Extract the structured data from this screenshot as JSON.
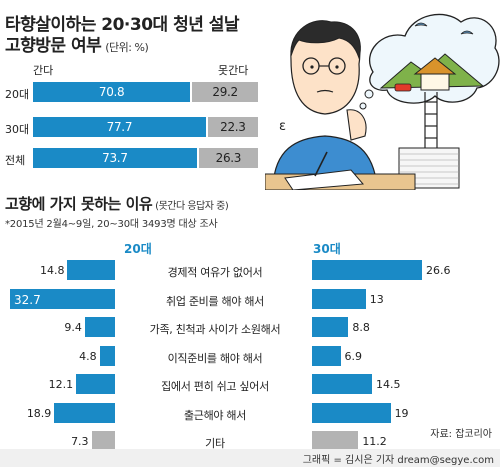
{
  "title": {
    "line1": "타향살이하는 20·30대 청년 설날",
    "line2": "고향방문 여부",
    "unit": "(단위: %)"
  },
  "colors": {
    "blue": "#1a8ac6",
    "gray": "#b3b3b3",
    "footer_bg": "#f0f0f0"
  },
  "section2": {
    "title": "고향에 가지 못하는 이유",
    "subtitle": "(못간다 응답자 중)",
    "note": "*2015년 2월4~9일, 20~30대 3493명 대상 조사"
  },
  "source": "자료: 잡코리아",
  "credit": "그래픽 = 김시은 기자 dream@segye.com",
  "chart_data": [
    {
      "type": "bar",
      "stacked": true,
      "orientation": "horizontal",
      "title": "타향살이하는 20·30대 청년 설날 고향방문 여부",
      "unit": "(단위: %)",
      "legend": [
        "간다",
        "못간다"
      ],
      "categories": [
        "20대",
        "30대",
        "전체"
      ],
      "series": [
        {
          "name": "간다",
          "values": [
            70.8,
            77.7,
            73.7
          ]
        },
        {
          "name": "못간다",
          "values": [
            29.2,
            22.3,
            26.3
          ]
        }
      ]
    },
    {
      "type": "bar",
      "orientation": "horizontal",
      "title": "고향에 가지 못하는 이유",
      "subtitle": "(못간다 응답자 중)",
      "categories": [
        "경제적 여유가 없어서",
        "취업 준비를 해야 해서",
        "가족, 친척과 사이가 소원해서",
        "이직준비를 해야 해서",
        "집에서 편히 쉬고 싶어서",
        "출근해야 해서",
        "기타"
      ],
      "series": [
        {
          "name": "20대",
          "values": [
            14.8,
            32.7,
            9.4,
            4.8,
            12.1,
            18.9,
            7.3
          ]
        },
        {
          "name": "30대",
          "values": [
            26.6,
            13,
            8.8,
            6.9,
            14.5,
            19,
            11.2
          ]
        }
      ],
      "value_labels_20": [
        "14.8",
        "32.7",
        "9.4",
        "4.8",
        "12.1",
        "18.9",
        "7.3"
      ],
      "value_labels_30": [
        "26.6",
        "13",
        "8.8",
        "6.9",
        "14.5",
        "19",
        "11.2"
      ]
    }
  ]
}
